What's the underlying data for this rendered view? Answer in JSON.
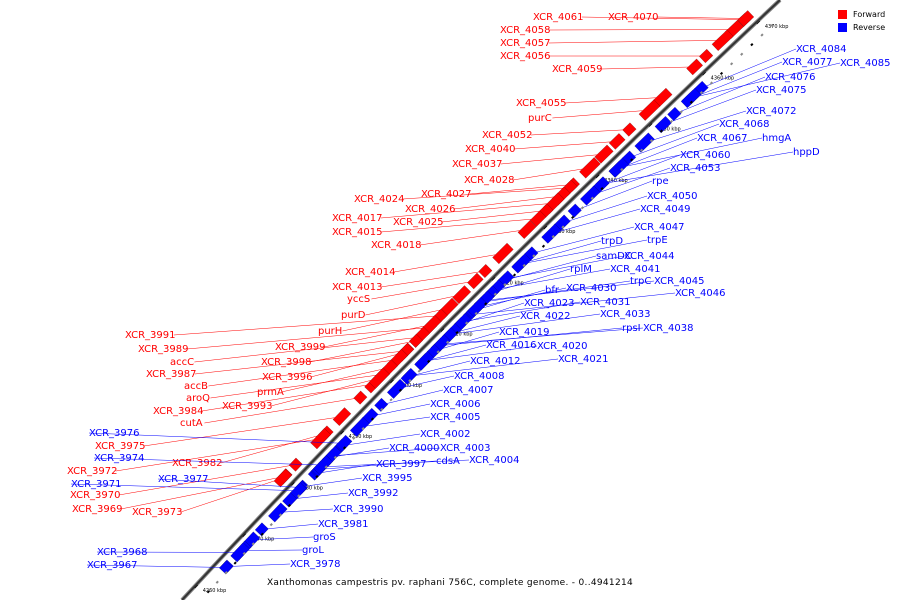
{
  "legend": {
    "forward_label": "Forward",
    "reverse_label": "Reverse",
    "forward_color": "#ff0000",
    "reverse_color": "#0000ff"
  },
  "caption": "Xanthomonas campestris pv. raphani 756C, complete genome. - 0..4941214",
  "axis_ticks": [
    "4260 kbp",
    "4270 kbp",
    "4280 kbp",
    "4290 kbp",
    "4300 kbp",
    "4310 kbp",
    "4320 kbp",
    "4330 kbp",
    "4340 kbp",
    "4350 kbp",
    "4360 kbp",
    "4370 kbp"
  ],
  "forward_genes": [
    "XCR_4061",
    "XCR_4070",
    "XCR_4058",
    "XCR_4057",
    "XCR_4056",
    "XCR_4059",
    "XCR_4055",
    "purC",
    "XCR_4052",
    "XCR_4040",
    "XCR_4037",
    "XCR_4028",
    "XCR_4027",
    "XCR_4024",
    "XCR_4026",
    "XCR_4017",
    "XCR_4025",
    "XCR_4015",
    "XCR_4018",
    "XCR_4014",
    "XCR_4013",
    "yccS",
    "purD",
    "purH",
    "XCR_3991",
    "XCR_3989",
    "XCR_3999",
    "accC",
    "XCR_3998",
    "XCR_3987",
    "XCR_3996",
    "accB",
    "aroQ",
    "prmA",
    "XCR_3984",
    "XCR_3993",
    "cutA",
    "XCR_3982",
    "XCR_3975",
    "XCR_3972",
    "XCR_3970",
    "XCR_3969",
    "XCR_3973"
  ],
  "reverse_genes": [
    "XCR_4084",
    "XCR_4077",
    "XCR_4085",
    "XCR_4076",
    "XCR_4075",
    "XCR_4072",
    "XCR_4068",
    "XCR_4067",
    "hmgA",
    "hppD",
    "XCR_4060",
    "XCR_4053",
    "rpe",
    "XCR_4050",
    "XCR_4049",
    "XCR_4047",
    "trpE",
    "trpD",
    "samDC",
    "XCR_4044",
    "XCR_4041",
    "rplM",
    "trpC",
    "XCR_4045",
    "XCR_4046",
    "bfr",
    "XCR_4030",
    "XCR_4023",
    "XCR_4031",
    "XCR_4022",
    "XCR_4033",
    "rpsI",
    "XCR_4038",
    "XCR_4019",
    "XCR_4016",
    "XCR_4020",
    "XCR_4021",
    "XCR_4012",
    "XCR_4008",
    "XCR_4007",
    "XCR_4006",
    "XCR_4005",
    "XCR_4002",
    "XCR_4000",
    "XCR_4003",
    "XCR_3997",
    "cdsA",
    "XCR_4004",
    "XCR_3995",
    "XCR_3992",
    "XCR_3990",
    "XCR_3981",
    "groS",
    "groL",
    "XCR_3978",
    "XCR_3976",
    "XCR_3974",
    "XCR_3977",
    "XCR_3971",
    "XCR_3968",
    "XCR_3967"
  ]
}
